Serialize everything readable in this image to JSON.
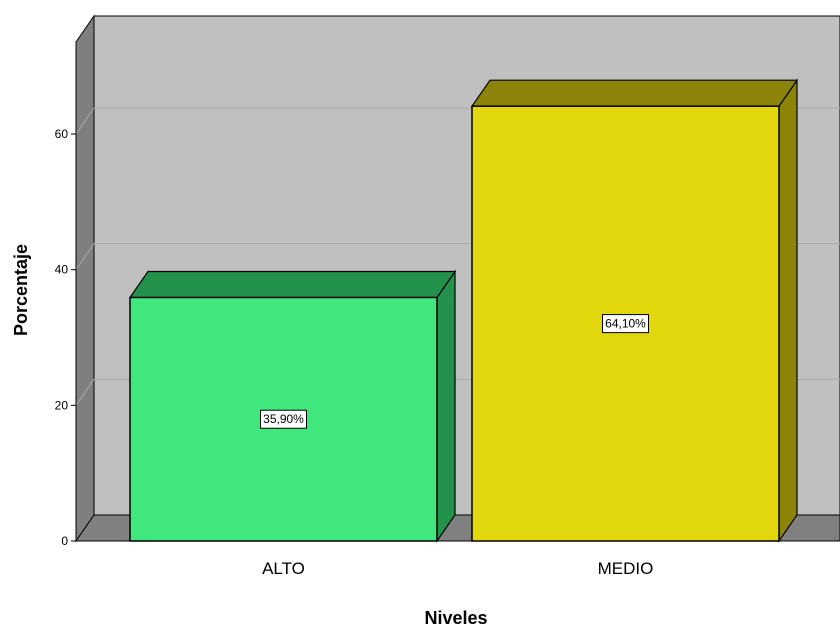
{
  "chart_data": {
    "type": "bar",
    "style": "3d",
    "categories": [
      "ALTO",
      "MEDIO"
    ],
    "values": [
      35.9,
      64.1
    ],
    "data_labels": [
      "35,90%",
      "64,10%"
    ],
    "title": "",
    "xlabel": "Niveles",
    "ylabel": "Porcentaje",
    "ylim": [
      0,
      70
    ],
    "yticks": [
      0,
      20,
      40,
      60
    ],
    "ytick_labels": [
      "0",
      "20",
      "40",
      "60"
    ],
    "grid": true,
    "legend": "none"
  },
  "colors": {
    "background": "#ffffff",
    "plot_back": "#c0c0c0",
    "floor": "#808080",
    "left_wall": "#7f7f7f",
    "gridline": "#a8a8a8",
    "bar_front": [
      "#40e77d",
      "#e2d70c"
    ],
    "bar_top": [
      "#23924d",
      "#8c8408"
    ],
    "bar_side": [
      "#23924d",
      "#8c8408"
    ],
    "outline": "#000000"
  }
}
